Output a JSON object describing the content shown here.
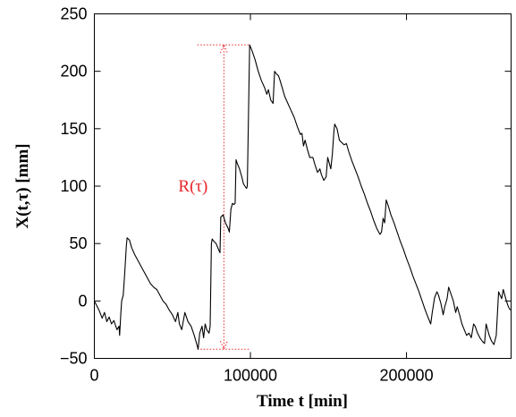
{
  "chart_data": {
    "type": "line",
    "title": "",
    "xlabel": "Time t [min]",
    "ylabel": "X(t,τ) [mm]",
    "xlim": [
      0,
      267000
    ],
    "ylim": [
      -50,
      250
    ],
    "xticks": [
      0,
      100000,
      200000
    ],
    "xtick_labels": [
      "0",
      "100000",
      "200000"
    ],
    "yticks": [
      -50,
      0,
      50,
      100,
      150,
      200,
      250
    ],
    "ytick_labels": [
      "−50",
      "0",
      "50",
      "100",
      "150",
      "200",
      "250"
    ],
    "grid": false,
    "series": [
      {
        "name": "",
        "color": "#000000",
        "points": [
          [
            0,
            0
          ],
          [
            3000,
            -8
          ],
          [
            5000,
            -15
          ],
          [
            6500,
            -10
          ],
          [
            8000,
            -18
          ],
          [
            9500,
            -14
          ],
          [
            11000,
            -20
          ],
          [
            12500,
            -17
          ],
          [
            14500,
            -25
          ],
          [
            15800,
            -22
          ],
          [
            16200,
            -30
          ],
          [
            17000,
            -10
          ],
          [
            17500,
            0
          ],
          [
            18500,
            5
          ],
          [
            19500,
            25
          ],
          [
            20500,
            48
          ],
          [
            21000,
            55
          ],
          [
            22500,
            53
          ],
          [
            24000,
            46
          ],
          [
            26000,
            40
          ],
          [
            28000,
            35
          ],
          [
            30000,
            30
          ],
          [
            32000,
            25
          ],
          [
            34000,
            20
          ],
          [
            36000,
            15
          ],
          [
            38000,
            12
          ],
          [
            40000,
            10
          ],
          [
            42000,
            5
          ],
          [
            44000,
            0
          ],
          [
            46000,
            -3
          ],
          [
            48000,
            -8
          ],
          [
            50000,
            -12
          ],
          [
            52000,
            -18
          ],
          [
            53500,
            -10
          ],
          [
            54500,
            -20
          ],
          [
            56000,
            -25
          ],
          [
            58000,
            -10
          ],
          [
            60000,
            -18
          ],
          [
            62000,
            -22
          ],
          [
            64000,
            -30
          ],
          [
            65500,
            -37
          ],
          [
            66500,
            -42
          ],
          [
            67500,
            -28
          ],
          [
            69000,
            -22
          ],
          [
            70000,
            -32
          ],
          [
            71000,
            -20
          ],
          [
            72000,
            -25
          ],
          [
            73500,
            -28
          ],
          [
            74200,
            -22
          ],
          [
            75000,
            50
          ],
          [
            75500,
            54
          ],
          [
            76500,
            52
          ],
          [
            78000,
            50
          ],
          [
            79500,
            45
          ],
          [
            80500,
            42
          ],
          [
            81000,
            73
          ],
          [
            82500,
            75
          ],
          [
            84000,
            68
          ],
          [
            85500,
            64
          ],
          [
            86500,
            60
          ],
          [
            87500,
            80
          ],
          [
            88500,
            85
          ],
          [
            89500,
            84
          ],
          [
            90200,
            85
          ],
          [
            90800,
            123
          ],
          [
            91500,
            120
          ],
          [
            93000,
            115
          ],
          [
            94500,
            108
          ],
          [
            95500,
            102
          ],
          [
            96500,
            100
          ],
          [
            97500,
            98
          ],
          [
            98000,
            100
          ],
          [
            99500,
            223
          ],
          [
            101000,
            218
          ],
          [
            103000,
            210
          ],
          [
            105000,
            200
          ],
          [
            107000,
            192
          ],
          [
            109000,
            186
          ],
          [
            110500,
            180
          ],
          [
            111500,
            184
          ],
          [
            113000,
            175
          ],
          [
            114500,
            172
          ],
          [
            115500,
            200
          ],
          [
            116500,
            198
          ],
          [
            118000,
            196
          ],
          [
            119000,
            192
          ],
          [
            120500,
            185
          ],
          [
            122000,
            178
          ],
          [
            124000,
            172
          ],
          [
            126000,
            166
          ],
          [
            128000,
            160
          ],
          [
            130000,
            152
          ],
          [
            132000,
            145
          ],
          [
            133000,
            146
          ],
          [
            134000,
            135
          ],
          [
            135000,
            140
          ],
          [
            136500,
            132
          ],
          [
            138000,
            125
          ],
          [
            140000,
            125
          ],
          [
            141500,
            118
          ],
          [
            143000,
            112
          ],
          [
            144500,
            115
          ],
          [
            145500,
            110
          ],
          [
            147000,
            105
          ],
          [
            148500,
            108
          ],
          [
            149500,
            125
          ],
          [
            150500,
            120
          ],
          [
            151500,
            115
          ],
          [
            152500,
            128
          ],
          [
            153500,
            148
          ],
          [
            154000,
            154
          ],
          [
            155500,
            150
          ],
          [
            157000,
            140
          ],
          [
            158500,
            138
          ],
          [
            160000,
            136
          ],
          [
            161500,
            137
          ],
          [
            163000,
            130
          ],
          [
            165000,
            122
          ],
          [
            167000,
            115
          ],
          [
            169000,
            108
          ],
          [
            171000,
            100
          ],
          [
            173000,
            93
          ],
          [
            175000,
            85
          ],
          [
            177000,
            78
          ],
          [
            179000,
            70
          ],
          [
            181000,
            63
          ],
          [
            183000,
            58
          ],
          [
            184000,
            60
          ],
          [
            185000,
            72
          ],
          [
            186000,
            68
          ],
          [
            187000,
            88
          ],
          [
            188500,
            82
          ],
          [
            190000,
            75
          ],
          [
            192000,
            68
          ],
          [
            194000,
            60
          ],
          [
            196000,
            52
          ],
          [
            198000,
            45
          ],
          [
            200000,
            37
          ],
          [
            202000,
            30
          ],
          [
            204000,
            22
          ],
          [
            206000,
            15
          ],
          [
            208000,
            8
          ],
          [
            210000,
            0
          ],
          [
            212000,
            -8
          ],
          [
            214000,
            -15
          ],
          [
            215500,
            -20
          ],
          [
            216500,
            -10
          ],
          [
            218000,
            3
          ],
          [
            219500,
            8
          ],
          [
            220500,
            5
          ],
          [
            222000,
            -2
          ],
          [
            223500,
            -12
          ],
          [
            224500,
            -5
          ],
          [
            226000,
            2
          ],
          [
            227000,
            12
          ],
          [
            228500,
            6
          ],
          [
            230000,
            0
          ],
          [
            231500,
            -10
          ],
          [
            232500,
            -5
          ],
          [
            234000,
            -12
          ],
          [
            235500,
            -20
          ],
          [
            237000,
            -25
          ],
          [
            238500,
            -30
          ],
          [
            240000,
            -28
          ],
          [
            241500,
            -32
          ],
          [
            243000,
            -20
          ],
          [
            244000,
            -22
          ],
          [
            245500,
            -28
          ],
          [
            247000,
            -32
          ],
          [
            248500,
            -35
          ],
          [
            250000,
            -37
          ],
          [
            251000,
            -20
          ],
          [
            252000,
            -25
          ],
          [
            253000,
            -30
          ],
          [
            254500,
            -35
          ],
          [
            256000,
            -38
          ],
          [
            257500,
            -30
          ],
          [
            259000,
            8
          ],
          [
            260000,
            5
          ],
          [
            261000,
            2
          ],
          [
            262000,
            10
          ],
          [
            263000,
            5
          ],
          [
            264000,
            0
          ],
          [
            265000,
            -4
          ],
          [
            266000,
            -7
          ],
          [
            267000,
            -8
          ]
        ]
      }
    ],
    "annotations": [
      {
        "label": "R(τ)",
        "color": "#e8242a",
        "x": 83000,
        "y_from": -42,
        "y_to": 223,
        "label_y": 100
      }
    ]
  }
}
